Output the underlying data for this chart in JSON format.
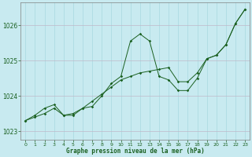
{
  "xlabel": "Graphe pression niveau de la mer (hPa)",
  "background_color": "#c8eaf0",
  "grid_color_h": "#c0b8c8",
  "grid_color_v": "#a8d8e0",
  "line_color": "#1a6020",
  "x": [
    0,
    1,
    2,
    3,
    4,
    5,
    6,
    7,
    8,
    9,
    10,
    11,
    12,
    13,
    14,
    15,
    16,
    17,
    18,
    19,
    20,
    21,
    22,
    23
  ],
  "y_zigzag": [
    1023.3,
    1023.45,
    1023.65,
    1023.75,
    1023.45,
    1023.45,
    1023.65,
    1023.7,
    1024.0,
    1024.35,
    1024.55,
    1025.55,
    1025.75,
    1025.55,
    1024.55,
    1024.45,
    1024.15,
    1024.15,
    1024.5,
    1025.05,
    1025.15,
    1025.45,
    1026.05,
    1026.45
  ],
  "y_trend": [
    1023.3,
    1023.4,
    1023.5,
    1023.65,
    1023.45,
    1023.5,
    1023.65,
    1023.85,
    1024.05,
    1024.25,
    1024.45,
    1024.55,
    1024.65,
    1024.7,
    1024.75,
    1024.8,
    1024.4,
    1024.4,
    1024.65,
    1025.05,
    1025.15,
    1025.45,
    1026.05,
    1026.45
  ],
  "ylim": [
    1022.75,
    1026.65
  ],
  "yticks": [
    1023,
    1024,
    1025,
    1026
  ],
  "xticks": [
    0,
    1,
    2,
    3,
    4,
    5,
    6,
    7,
    8,
    9,
    10,
    11,
    12,
    13,
    14,
    15,
    16,
    17,
    18,
    19,
    20,
    21,
    22,
    23
  ],
  "figsize": [
    3.2,
    2.0
  ],
  "dpi": 100
}
